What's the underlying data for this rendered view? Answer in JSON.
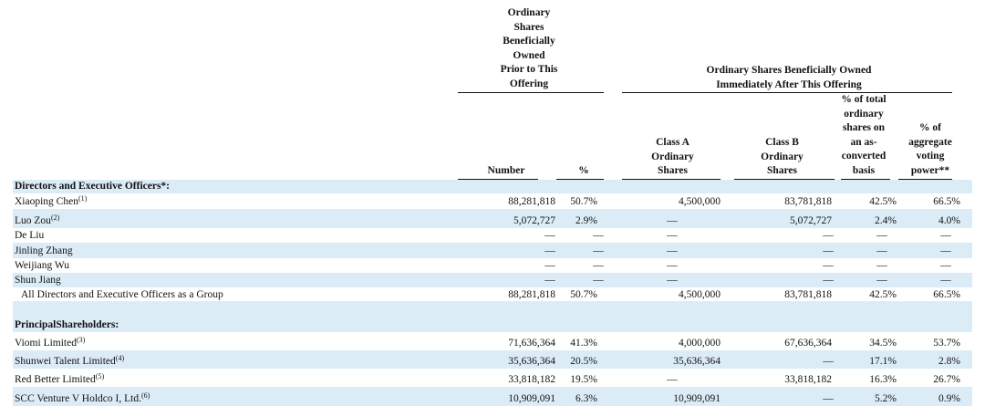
{
  "header": {
    "prior_group": [
      "Ordinary",
      "Shares",
      "Beneficially",
      "Owned",
      "Prior to This",
      "Offering"
    ],
    "after_group": [
      "Ordinary Shares Beneficially Owned",
      "Immediately After This Offering"
    ],
    "col_number": "Number",
    "col_pct": "%",
    "col_class_a": [
      "Class A",
      "Ordinary",
      "Shares"
    ],
    "col_class_b": [
      "Class B",
      "Ordinary",
      "Shares"
    ],
    "col_pct_total": [
      "% of total",
      "ordinary",
      "shares on",
      "an as-",
      "converted",
      "basis"
    ],
    "col_voting": [
      "% of",
      "aggregate",
      "voting",
      "power**"
    ]
  },
  "sections": {
    "directors": "Directors and Executive Officers*:",
    "principal": "PrincipalShareholders:"
  },
  "rows": [
    {
      "name": "Xiaoping Chen",
      "note": "(1)",
      "number": "88,281,818",
      "pct": "50.7%",
      "class_a": "4,500,000",
      "class_b": "83,781,818",
      "pct_total": "42.5%",
      "voting": "66.5%"
    },
    {
      "name": "Luo Zou",
      "note": "(2)",
      "number": "5,072,727",
      "pct": "2.9%",
      "class_a": "—",
      "class_b": "5,072,727",
      "pct_total": "2.4%",
      "voting": "4.0%"
    },
    {
      "name": "De Liu",
      "note": "",
      "number": "—",
      "pct": "—",
      "class_a": "—",
      "class_b": "—",
      "pct_total": "—",
      "voting": "—"
    },
    {
      "name": "Jinling Zhang",
      "note": "",
      "number": "—",
      "pct": "—",
      "class_a": "—",
      "class_b": "—",
      "pct_total": "—",
      "voting": "—"
    },
    {
      "name": "Weijiang Wu",
      "note": "",
      "number": "—",
      "pct": "—",
      "class_a": "—",
      "class_b": "—",
      "pct_total": "—",
      "voting": "—"
    },
    {
      "name": "Shun Jiang",
      "note": "",
      "number": "—",
      "pct": "—",
      "class_a": "—",
      "class_b": "—",
      "pct_total": "—",
      "voting": "—"
    },
    {
      "name": "All Directors and Executive Officers as a Group",
      "note": "",
      "number": "88,281,818",
      "pct": "50.7%",
      "class_a": "4,500,000",
      "class_b": "83,781,818",
      "pct_total": "42.5%",
      "voting": "66.5%"
    },
    {
      "name": "Viomi Limited",
      "note": "(3)",
      "number": "71,636,364",
      "pct": "41.3%",
      "class_a": "4,000,000",
      "class_b": "67,636,364",
      "pct_total": "34.5%",
      "voting": "53.7%"
    },
    {
      "name": "Shunwei Talent Limited",
      "note": "(4)",
      "number": "35,636,364",
      "pct": "20.5%",
      "class_a": "35,636,364",
      "class_b": "—",
      "pct_total": "17.1%",
      "voting": "2.8%"
    },
    {
      "name": "Red Better Limited",
      "note": "(5)",
      "number": "33,818,182",
      "pct": "19.5%",
      "class_a": "—",
      "class_b": "33,818,182",
      "pct_total": "16.3%",
      "voting": "26.7%"
    },
    {
      "name": "SCC Venture V Holdco I, Ltd.",
      "note": "(6)",
      "number": "10,909,091",
      "pct": "6.3%",
      "class_a": "10,909,091",
      "class_b": "—",
      "pct_total": "5.2%",
      "voting": "0.9%"
    }
  ]
}
